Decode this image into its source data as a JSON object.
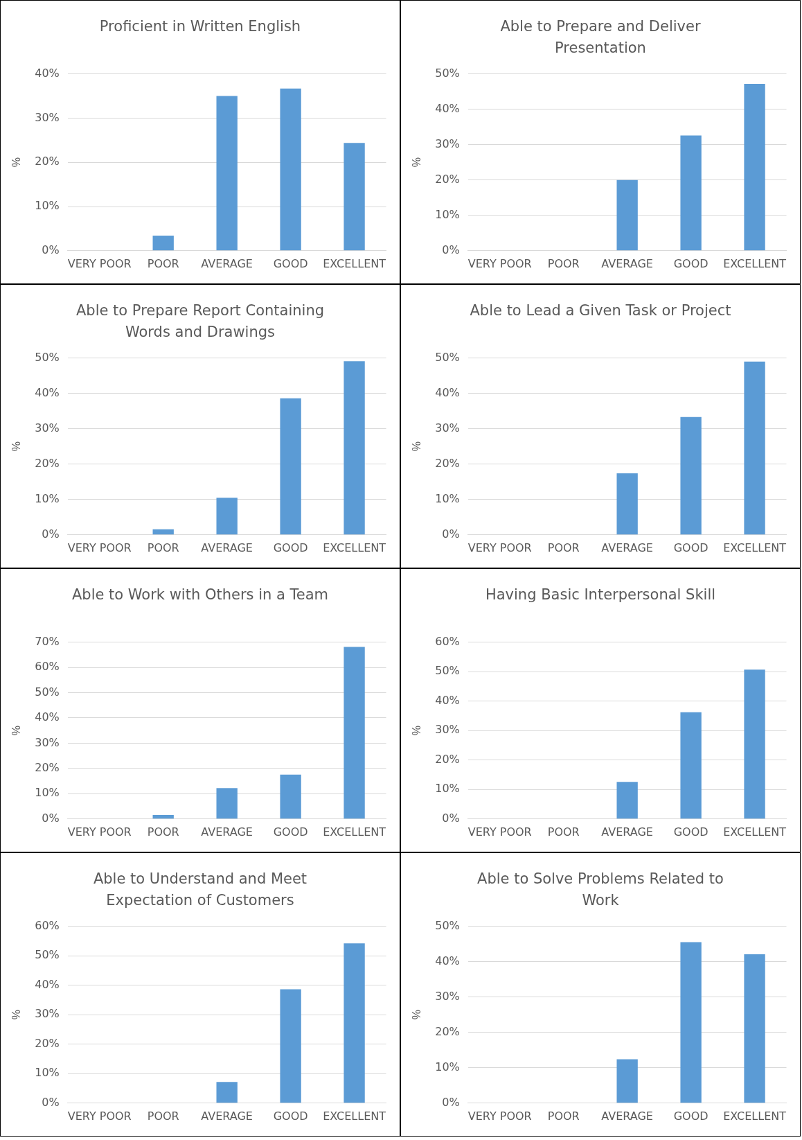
{
  "chart_data": [
    {
      "type": "bar",
      "title": "Proficient in Written English",
      "ylabel": "%",
      "categories": [
        "VERY POOR",
        "POOR",
        "AVERAGE",
        "GOOD",
        "EXCELLENT"
      ],
      "values": [
        0,
        3.4,
        35.0,
        36.7,
        24.4
      ],
      "color": "#5b9bd5",
      "ylim": [
        0,
        40
      ],
      "yticks": [
        {
          "value": 0,
          "label": "0%"
        },
        {
          "value": 10,
          "label": "10%"
        },
        {
          "value": 20,
          "label": "20%"
        },
        {
          "value": 30,
          "label": "30%"
        },
        {
          "value": 40,
          "label": "40%"
        }
      ],
      "grid": "y"
    },
    {
      "type": "bar",
      "title": "Able to Prepare and Deliver Presentation",
      "ylabel": "%",
      "categories": [
        "VERY POOR",
        "POOR",
        "AVERAGE",
        "GOOD",
        "EXCELLENT"
      ],
      "values": [
        0,
        0,
        20.0,
        32.6,
        47.2
      ],
      "color": "#5b9bd5",
      "ylim": [
        0,
        50
      ],
      "yticks": [
        {
          "value": 0,
          "label": "0%"
        },
        {
          "value": 10,
          "label": "10%"
        },
        {
          "value": 20,
          "label": "20%"
        },
        {
          "value": 30,
          "label": "30%"
        },
        {
          "value": 40,
          "label": "40%"
        },
        {
          "value": 50,
          "label": "50%"
        }
      ],
      "grid": "y"
    },
    {
      "type": "bar",
      "title": "Able to Prepare Report Containing Words and Drawings",
      "ylabel": "%",
      "categories": [
        "VERY POOR",
        "POOR",
        "AVERAGE",
        "GOOD",
        "EXCELLENT"
      ],
      "values": [
        0,
        1.6,
        10.5,
        38.6,
        49.1
      ],
      "color": "#5b9bd5",
      "ylim": [
        0,
        50
      ],
      "yticks": [
        {
          "value": 0,
          "label": "0%"
        },
        {
          "value": 10,
          "label": "10%"
        },
        {
          "value": 20,
          "label": "20%"
        },
        {
          "value": 30,
          "label": "30%"
        },
        {
          "value": 40,
          "label": "40%"
        },
        {
          "value": 50,
          "label": "50%"
        }
      ],
      "grid": "y"
    },
    {
      "type": "bar",
      "title": "Able to Lead a Given Task or Project",
      "ylabel": "%",
      "categories": [
        "VERY POOR",
        "POOR",
        "AVERAGE",
        "GOOD",
        "EXCELLENT"
      ],
      "values": [
        0,
        0,
        17.4,
        33.3,
        49.0
      ],
      "color": "#5b9bd5",
      "ylim": [
        0,
        50
      ],
      "yticks": [
        {
          "value": 0,
          "label": "0%"
        },
        {
          "value": 10,
          "label": "10%"
        },
        {
          "value": 20,
          "label": "20%"
        },
        {
          "value": 30,
          "label": "30%"
        },
        {
          "value": 40,
          "label": "40%"
        },
        {
          "value": 50,
          "label": "50%"
        }
      ],
      "grid": "y"
    },
    {
      "type": "bar",
      "title": "Able to Work with Others in a Team",
      "ylabel": "%",
      "categories": [
        "VERY POOR",
        "POOR",
        "AVERAGE",
        "GOOD",
        "EXCELLENT"
      ],
      "values": [
        0,
        1.6,
        12.2,
        17.6,
        68.1
      ],
      "color": "#5b9bd5",
      "ylim": [
        0,
        70
      ],
      "yticks": [
        {
          "value": 0,
          "label": "0%"
        },
        {
          "value": 10,
          "label": "10%"
        },
        {
          "value": 20,
          "label": "20%"
        },
        {
          "value": 30,
          "label": "30%"
        },
        {
          "value": 40,
          "label": "40%"
        },
        {
          "value": 50,
          "label": "50%"
        },
        {
          "value": 60,
          "label": "60%"
        },
        {
          "value": 70,
          "label": "70%"
        }
      ],
      "grid": "y"
    },
    {
      "type": "bar",
      "title": "Having Basic Interpersonal Skill",
      "ylabel": "%",
      "categories": [
        "VERY POOR",
        "POOR",
        "AVERAGE",
        "GOOD",
        "EXCELLENT"
      ],
      "values": [
        0,
        0,
        12.6,
        36.2,
        50.7
      ],
      "color": "#5b9bd5",
      "ylim": [
        0,
        60
      ],
      "yticks": [
        {
          "value": 0,
          "label": "0%"
        },
        {
          "value": 10,
          "label": "10%"
        },
        {
          "value": 20,
          "label": "20%"
        },
        {
          "value": 30,
          "label": "30%"
        },
        {
          "value": 40,
          "label": "40%"
        },
        {
          "value": 50,
          "label": "50%"
        },
        {
          "value": 60,
          "label": "60%"
        }
      ],
      "grid": "y"
    },
    {
      "type": "bar",
      "title": "Able to Understand and Meet Expectation of Customers",
      "ylabel": "%",
      "categories": [
        "VERY POOR",
        "POOR",
        "AVERAGE",
        "GOOD",
        "EXCELLENT"
      ],
      "values": [
        0,
        0,
        7.2,
        38.6,
        54.2
      ],
      "color": "#5b9bd5",
      "ylim": [
        0,
        60
      ],
      "yticks": [
        {
          "value": 0,
          "label": "0%"
        },
        {
          "value": 10,
          "label": "10%"
        },
        {
          "value": 20,
          "label": "20%"
        },
        {
          "value": 30,
          "label": "30%"
        },
        {
          "value": 40,
          "label": "40%"
        },
        {
          "value": 50,
          "label": "50%"
        },
        {
          "value": 60,
          "label": "60%"
        }
      ],
      "grid": "y"
    },
    {
      "type": "bar",
      "title": "Able to Solve Problems Related to Work",
      "ylabel": "%",
      "categories": [
        "VERY POOR",
        "POOR",
        "AVERAGE",
        "GOOD",
        "EXCELLENT"
      ],
      "values": [
        0,
        0,
        12.4,
        45.5,
        42.1
      ],
      "color": "#5b9bd5",
      "ylim": [
        0,
        50
      ],
      "yticks": [
        {
          "value": 0,
          "label": "0%"
        },
        {
          "value": 10,
          "label": "10%"
        },
        {
          "value": 20,
          "label": "20%"
        },
        {
          "value": 30,
          "label": "30%"
        },
        {
          "value": 40,
          "label": "40%"
        },
        {
          "value": 50,
          "label": "50%"
        }
      ],
      "grid": "y"
    }
  ]
}
